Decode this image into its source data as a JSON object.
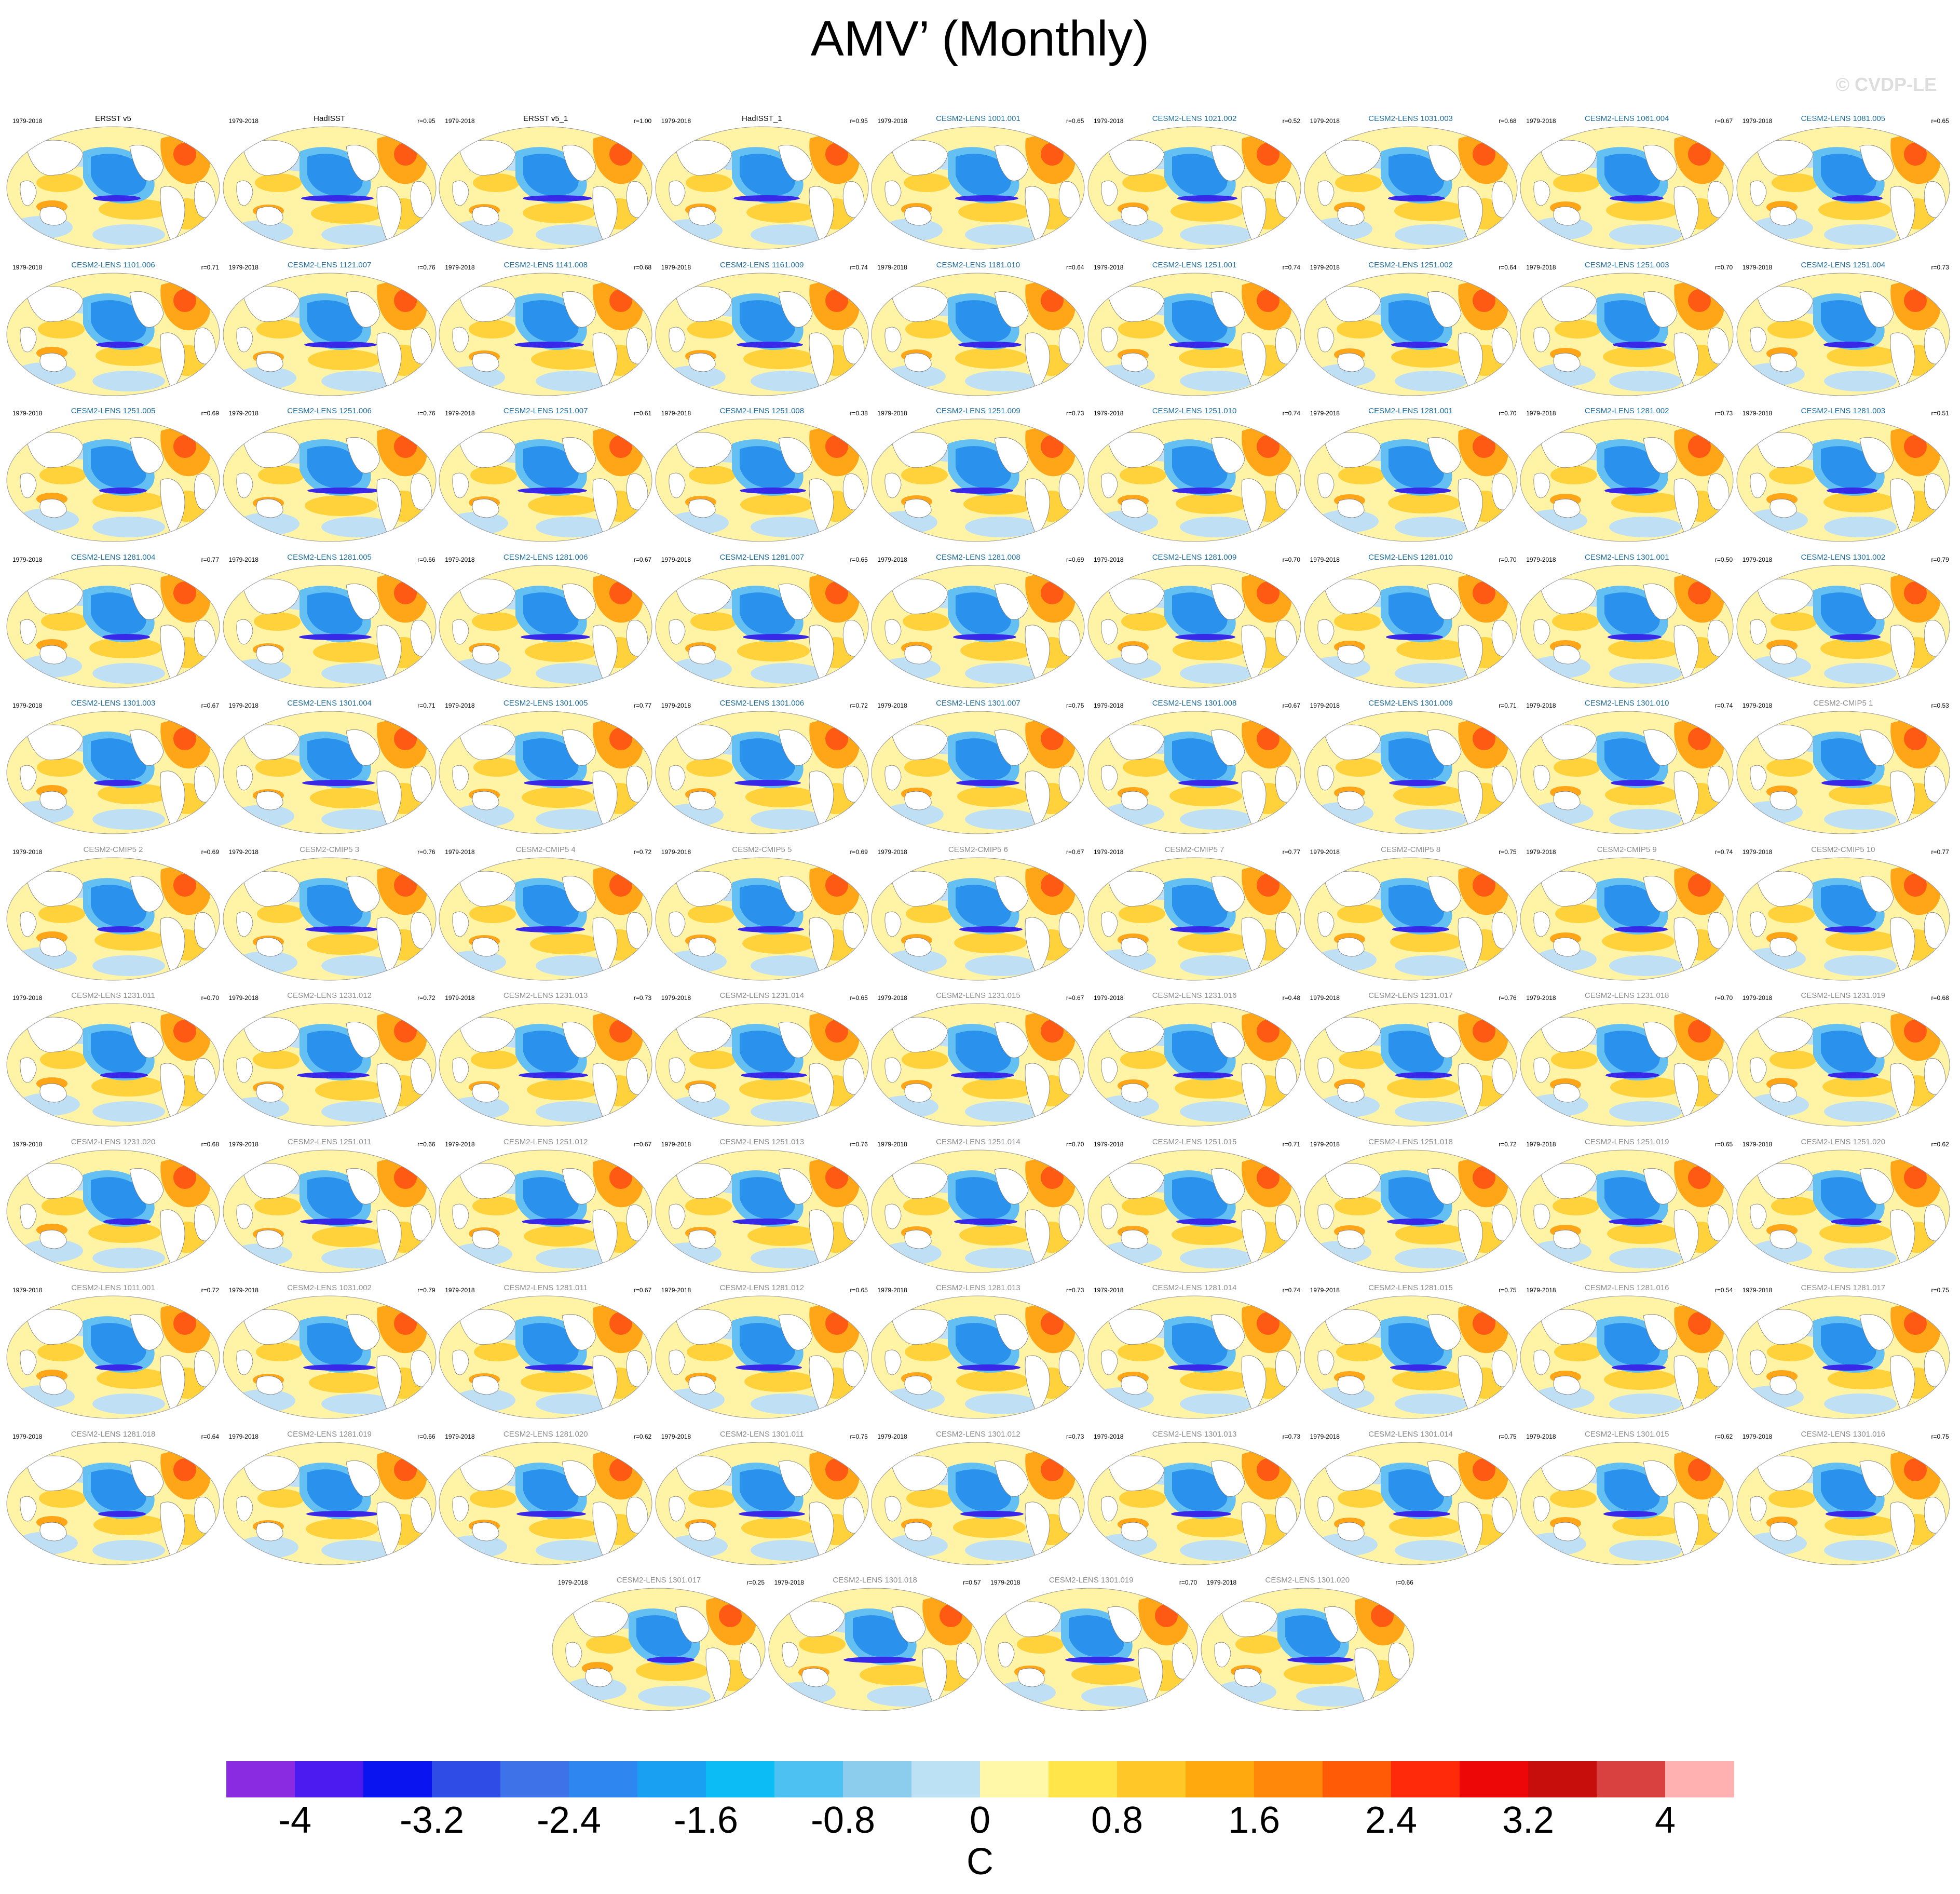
{
  "title": "AMV’ (Monthly)",
  "credit": "© CVDP-LE",
  "period": "1979-2018",
  "panels": [
    {
      "name": "ERSST v5",
      "r": "",
      "style": "obs"
    },
    {
      "name": "HadISST",
      "r": "r=0.95",
      "style": "obs"
    },
    {
      "name": "ERSST v5_1",
      "r": "r=1.00",
      "style": "obs"
    },
    {
      "name": "HadISST_1",
      "r": "r=0.95",
      "style": "obs"
    },
    {
      "name": "CESM2-LENS 1001.001",
      "r": "r=0.65",
      "style": "lens"
    },
    {
      "name": "CESM2-LENS 1021.002",
      "r": "r=0.52",
      "style": "lens"
    },
    {
      "name": "CESM2-LENS 1031.003",
      "r": "r=0.68",
      "style": "lens"
    },
    {
      "name": "CESM2-LENS 1061.004",
      "r": "r=0.67",
      "style": "lens"
    },
    {
      "name": "CESM2-LENS 1081.005",
      "r": "r=0.65",
      "style": "lens"
    },
    {
      "name": "CESM2-LENS 1101.006",
      "r": "r=0.71",
      "style": "lens"
    },
    {
      "name": "CESM2-LENS 1121.007",
      "r": "r=0.76",
      "style": "lens"
    },
    {
      "name": "CESM2-LENS 1141.008",
      "r": "r=0.68",
      "style": "lens"
    },
    {
      "name": "CESM2-LENS 1161.009",
      "r": "r=0.74",
      "style": "lens"
    },
    {
      "name": "CESM2-LENS 1181.010",
      "r": "r=0.64",
      "style": "lens"
    },
    {
      "name": "CESM2-LENS 1251.001",
      "r": "r=0.74",
      "style": "lens"
    },
    {
      "name": "CESM2-LENS 1251.002",
      "r": "r=0.64",
      "style": "lens"
    },
    {
      "name": "CESM2-LENS 1251.003",
      "r": "r=0.70",
      "style": "lens"
    },
    {
      "name": "CESM2-LENS 1251.004",
      "r": "r=0.73",
      "style": "lens"
    },
    {
      "name": "CESM2-LENS 1251.005",
      "r": "r=0.69",
      "style": "lens"
    },
    {
      "name": "CESM2-LENS 1251.006",
      "r": "r=0.76",
      "style": "lens"
    },
    {
      "name": "CESM2-LENS 1251.007",
      "r": "r=0.61",
      "style": "lens"
    },
    {
      "name": "CESM2-LENS 1251.008",
      "r": "r=0.38",
      "style": "lens"
    },
    {
      "name": "CESM2-LENS 1251.009",
      "r": "r=0.73",
      "style": "lens"
    },
    {
      "name": "CESM2-LENS 1251.010",
      "r": "r=0.74",
      "style": "lens"
    },
    {
      "name": "CESM2-LENS 1281.001",
      "r": "r=0.70",
      "style": "lens"
    },
    {
      "name": "CESM2-LENS 1281.002",
      "r": "r=0.73",
      "style": "lens"
    },
    {
      "name": "CESM2-LENS 1281.003",
      "r": "r=0.51",
      "style": "lens"
    },
    {
      "name": "CESM2-LENS 1281.004",
      "r": "r=0.77",
      "style": "lens"
    },
    {
      "name": "CESM2-LENS 1281.005",
      "r": "r=0.66",
      "style": "lens"
    },
    {
      "name": "CESM2-LENS 1281.006",
      "r": "r=0.67",
      "style": "lens"
    },
    {
      "name": "CESM2-LENS 1281.007",
      "r": "r=0.65",
      "style": "lens"
    },
    {
      "name": "CESM2-LENS 1281.008",
      "r": "r=0.69",
      "style": "lens"
    },
    {
      "name": "CESM2-LENS 1281.009",
      "r": "r=0.70",
      "style": "lens"
    },
    {
      "name": "CESM2-LENS 1281.010",
      "r": "r=0.70",
      "style": "lens"
    },
    {
      "name": "CESM2-LENS 1301.001",
      "r": "r=0.50",
      "style": "lens"
    },
    {
      "name": "CESM2-LENS 1301.002",
      "r": "r=0.79",
      "style": "lens"
    },
    {
      "name": "CESM2-LENS 1301.003",
      "r": "r=0.67",
      "style": "lens"
    },
    {
      "name": "CESM2-LENS 1301.004",
      "r": "r=0.71",
      "style": "lens"
    },
    {
      "name": "CESM2-LENS 1301.005",
      "r": "r=0.77",
      "style": "lens"
    },
    {
      "name": "CESM2-LENS 1301.006",
      "r": "r=0.72",
      "style": "lens"
    },
    {
      "name": "CESM2-LENS 1301.007",
      "r": "r=0.75",
      "style": "lens"
    },
    {
      "name": "CESM2-LENS 1301.008",
      "r": "r=0.67",
      "style": "lens"
    },
    {
      "name": "CESM2-LENS 1301.009",
      "r": "r=0.71",
      "style": "lens"
    },
    {
      "name": "CESM2-LENS 1301.010",
      "r": "r=0.74",
      "style": "lens"
    },
    {
      "name": "CESM2-CMIP5 1",
      "r": "r=0.53",
      "style": "grey"
    },
    {
      "name": "CESM2-CMIP5 2",
      "r": "r=0.69",
      "style": "grey"
    },
    {
      "name": "CESM2-CMIP5 3",
      "r": "r=0.76",
      "style": "grey"
    },
    {
      "name": "CESM2-CMIP5 4",
      "r": "r=0.72",
      "style": "grey"
    },
    {
      "name": "CESM2-CMIP5 5",
      "r": "r=0.69",
      "style": "grey"
    },
    {
      "name": "CESM2-CMIP5 6",
      "r": "r=0.67",
      "style": "grey"
    },
    {
      "name": "CESM2-CMIP5 7",
      "r": "r=0.77",
      "style": "grey"
    },
    {
      "name": "CESM2-CMIP5 8",
      "r": "r=0.75",
      "style": "grey"
    },
    {
      "name": "CESM2-CMIP5 9",
      "r": "r=0.74",
      "style": "grey"
    },
    {
      "name": "CESM2-CMIP5 10",
      "r": "r=0.77",
      "style": "grey"
    },
    {
      "name": "CESM2-LENS 1231.011",
      "r": "r=0.70",
      "style": "grey"
    },
    {
      "name": "CESM2-LENS 1231.012",
      "r": "r=0.72",
      "style": "grey"
    },
    {
      "name": "CESM2-LENS 1231.013",
      "r": "r=0.73",
      "style": "grey"
    },
    {
      "name": "CESM2-LENS 1231.014",
      "r": "r=0.65",
      "style": "grey"
    },
    {
      "name": "CESM2-LENS 1231.015",
      "r": "r=0.67",
      "style": "grey"
    },
    {
      "name": "CESM2-LENS 1231.016",
      "r": "r=0.48",
      "style": "grey"
    },
    {
      "name": "CESM2-LENS 1231.017",
      "r": "r=0.76",
      "style": "grey"
    },
    {
      "name": "CESM2-LENS 1231.018",
      "r": "r=0.70",
      "style": "grey"
    },
    {
      "name": "CESM2-LENS 1231.019",
      "r": "r=0.68",
      "style": "grey"
    },
    {
      "name": "CESM2-LENS 1231.020",
      "r": "r=0.68",
      "style": "grey"
    },
    {
      "name": "CESM2-LENS 1251.011",
      "r": "r=0.66",
      "style": "grey"
    },
    {
      "name": "CESM2-LENS 1251.012",
      "r": "r=0.67",
      "style": "grey"
    },
    {
      "name": "CESM2-LENS 1251.013",
      "r": "r=0.76",
      "style": "grey"
    },
    {
      "name": "CESM2-LENS 1251.014",
      "r": "r=0.70",
      "style": "grey"
    },
    {
      "name": "CESM2-LENS 1251.015",
      "r": "r=0.71",
      "style": "grey"
    },
    {
      "name": "CESM2-LENS 1251.018",
      "r": "r=0.72",
      "style": "grey"
    },
    {
      "name": "CESM2-LENS 1251.019",
      "r": "r=0.65",
      "style": "grey"
    },
    {
      "name": "CESM2-LENS 1251.020",
      "r": "r=0.62",
      "style": "grey"
    },
    {
      "name": "CESM2-LENS 1011.001",
      "r": "r=0.72",
      "style": "grey"
    },
    {
      "name": "CESM2-LENS 1031.002",
      "r": "r=0.79",
      "style": "grey"
    },
    {
      "name": "CESM2-LENS 1281.011",
      "r": "r=0.67",
      "style": "grey"
    },
    {
      "name": "CESM2-LENS 1281.012",
      "r": "r=0.65",
      "style": "grey"
    },
    {
      "name": "CESM2-LENS 1281.013",
      "r": "r=0.73",
      "style": "grey"
    },
    {
      "name": "CESM2-LENS 1281.014",
      "r": "r=0.74",
      "style": "grey"
    },
    {
      "name": "CESM2-LENS 1281.015",
      "r": "r=0.75",
      "style": "grey"
    },
    {
      "name": "CESM2-LENS 1281.016",
      "r": "r=0.54",
      "style": "grey"
    },
    {
      "name": "CESM2-LENS 1281.017",
      "r": "r=0.75",
      "style": "grey"
    },
    {
      "name": "CESM2-LENS 1281.018",
      "r": "r=0.64",
      "style": "grey"
    },
    {
      "name": "CESM2-LENS 1281.019",
      "r": "r=0.66",
      "style": "grey"
    },
    {
      "name": "CESM2-LENS 1281.020",
      "r": "r=0.62",
      "style": "grey"
    },
    {
      "name": "CESM2-LENS 1301.011",
      "r": "r=0.75",
      "style": "grey"
    },
    {
      "name": "CESM2-LENS 1301.012",
      "r": "r=0.73",
      "style": "grey"
    },
    {
      "name": "CESM2-LENS 1301.013",
      "r": "r=0.73",
      "style": "grey"
    },
    {
      "name": "CESM2-LENS 1301.014",
      "r": "r=0.75",
      "style": "grey"
    },
    {
      "name": "CESM2-LENS 1301.015",
      "r": "r=0.62",
      "style": "grey"
    },
    {
      "name": "CESM2-LENS 1301.016",
      "r": "r=0.75",
      "style": "grey"
    },
    {
      "name": "CESM2-LENS 1301.017",
      "r": "r=0.25",
      "style": "grey"
    },
    {
      "name": "CESM2-LENS 1301.018",
      "r": "r=0.57",
      "style": "grey"
    },
    {
      "name": "CESM2-LENS 1301.019",
      "r": "r=0.70",
      "style": "grey"
    },
    {
      "name": "CESM2-LENS 1301.020",
      "r": "r=0.66",
      "style": "grey"
    }
  ],
  "name_colors": {
    "obs": "#000000",
    "lens": "#1f6e9c",
    "grey": "#8c8c8c"
  },
  "colorbar": {
    "colors": [
      "#8a2be2",
      "#4b1bf0",
      "#0a14f0",
      "#2f4de6",
      "#3d72e8",
      "#2e86f0",
      "#1aa0f2",
      "#0cbdf5",
      "#4cc1f2",
      "#8ccdee",
      "#bde1f4",
      "#fff8a8",
      "#ffe44a",
      "#ffc728",
      "#ffa90f",
      "#ff880a",
      "#ff5a05",
      "#ff2a0a",
      "#ee0707",
      "#c80d0d",
      "#d94040",
      "#ffb0b0"
    ],
    "tick_labels": [
      "-4",
      "-3.2",
      "-2.4",
      "-1.6",
      "-0.8",
      "0",
      "0.8",
      "1.6",
      "2.4",
      "3.2",
      "4"
    ],
    "unit": "C"
  },
  "map_colors": {
    "ocean": "#fff3a6",
    "warm1": "#ffd23c",
    "warm2": "#ffa518",
    "hot": "#ff5a14",
    "cold1": "#bfe0f4",
    "cold2": "#64c0f2",
    "cold3": "#2a92ec",
    "core": "#3a28e8",
    "land": "#ffffff"
  }
}
